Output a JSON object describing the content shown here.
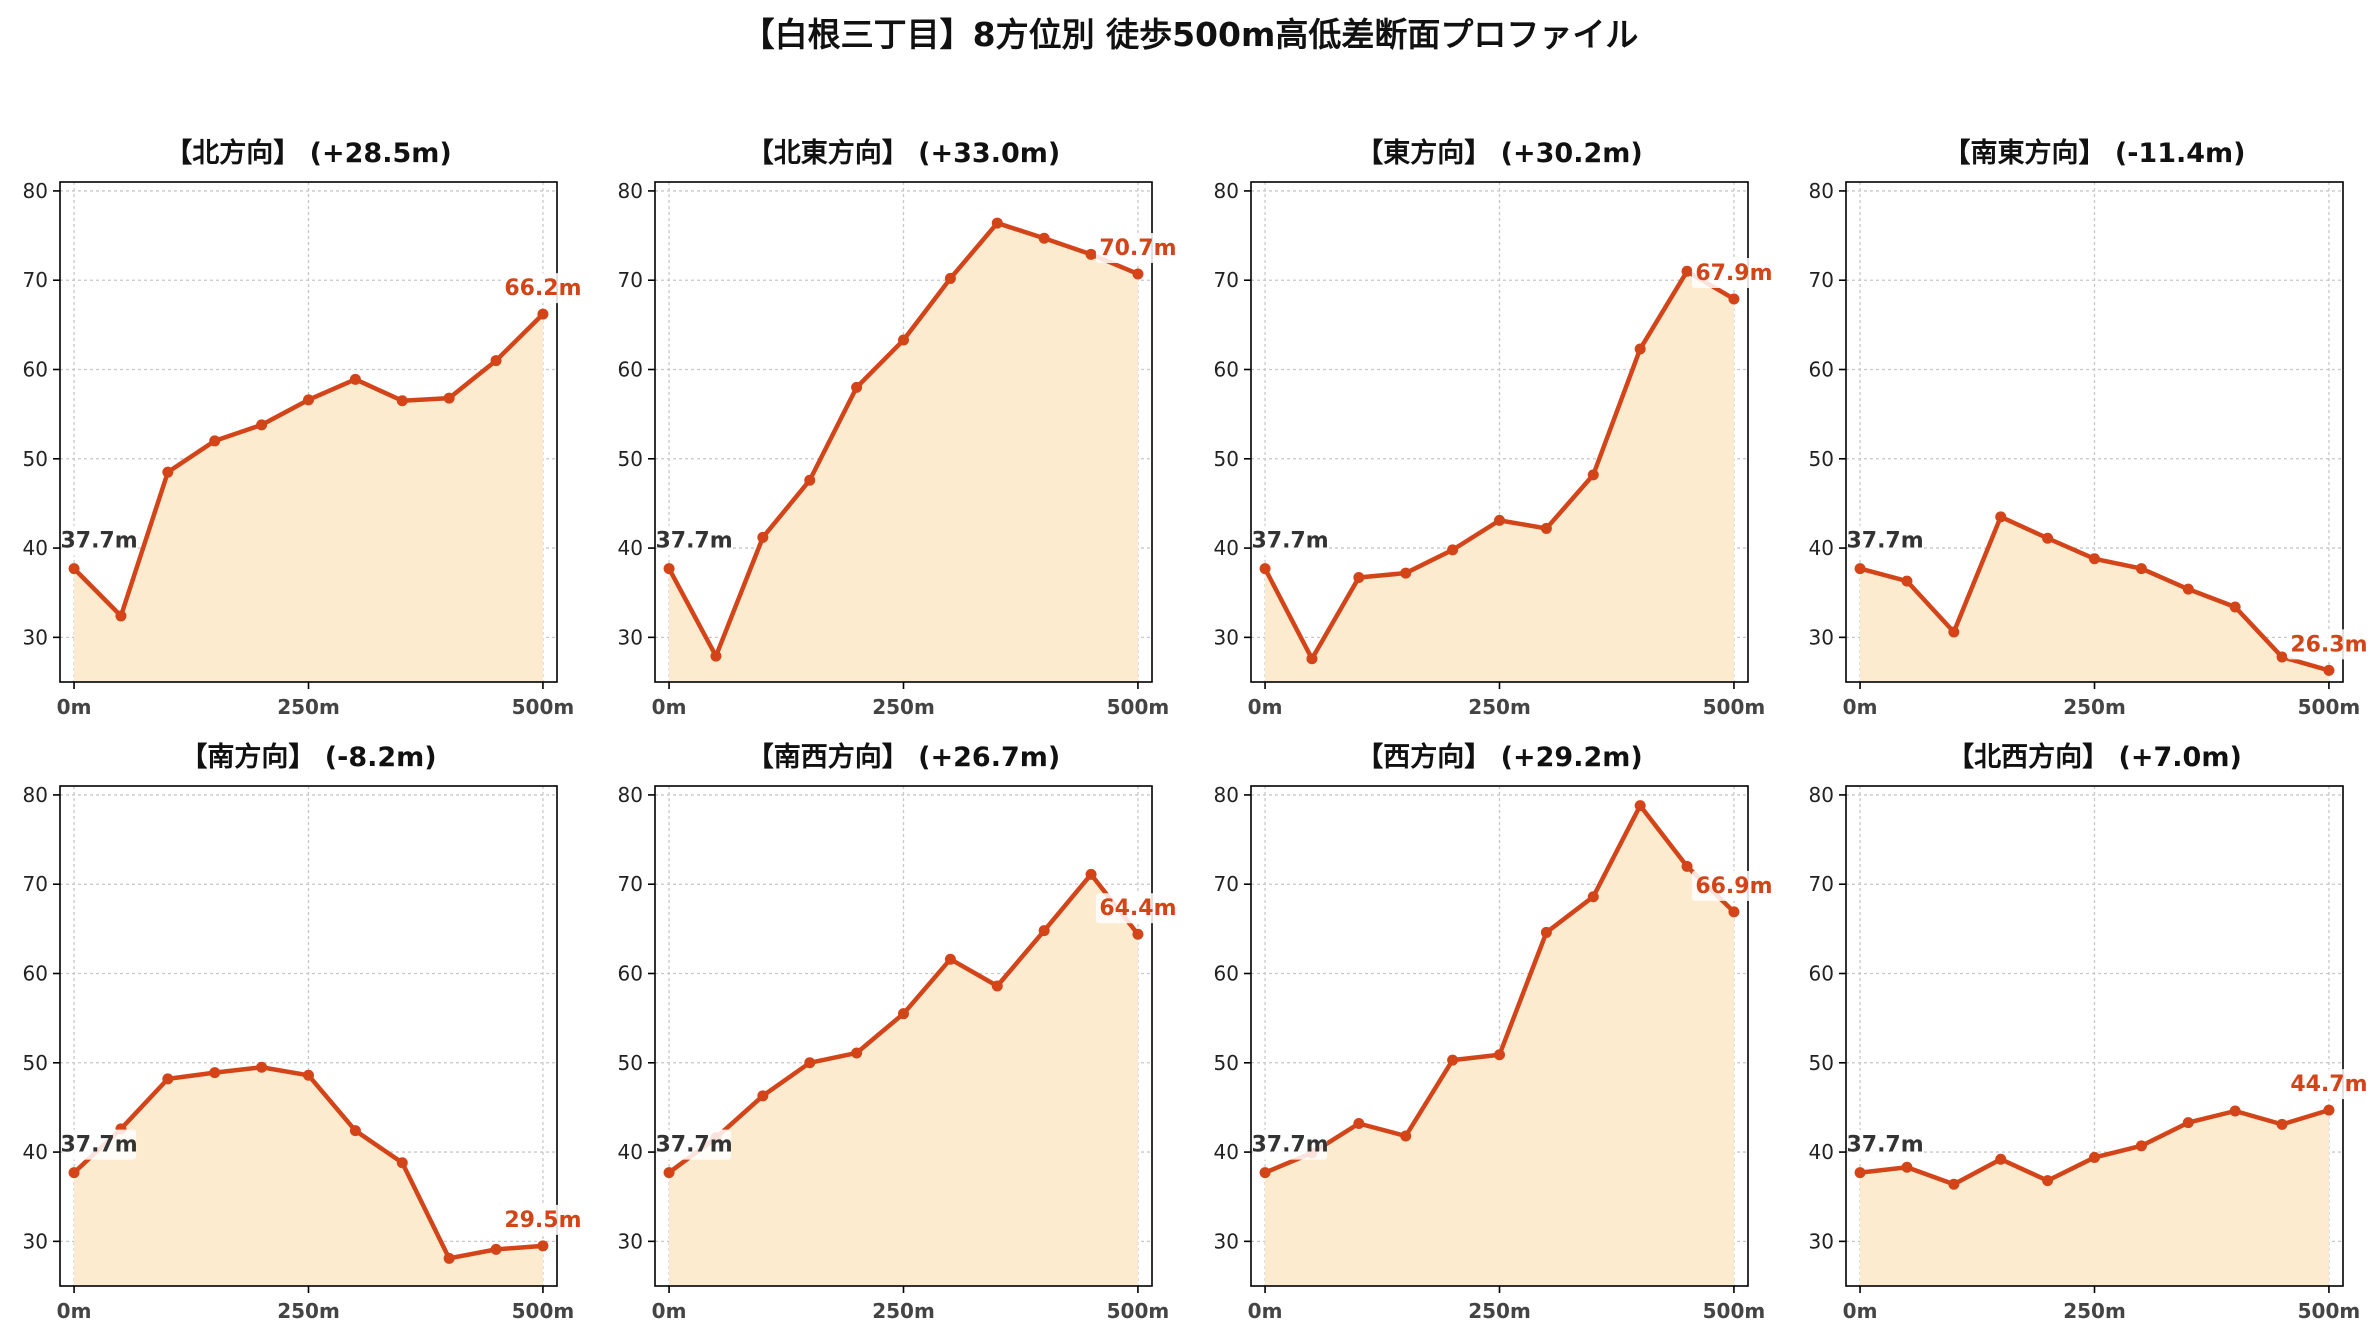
{
  "figure": {
    "title": "【白根三丁目】8方位別 徒歩500m高低差断面プロファイル"
  },
  "chart_data": [
    {
      "type": "area",
      "title": "【北方向】 (+28.5m)",
      "x": [
        0,
        50,
        100,
        150,
        200,
        250,
        300,
        350,
        400,
        450,
        500
      ],
      "values": [
        37.7,
        32.4,
        48.5,
        52.0,
        53.8,
        56.6,
        58.9,
        56.5,
        56.8,
        61.0,
        66.2
      ],
      "start_label": "37.7m",
      "end_label": "66.2m",
      "xticks": [
        "0m",
        "250m",
        "500m"
      ],
      "yticks": [
        30,
        40,
        50,
        60,
        70,
        80
      ],
      "ylim": [
        25,
        81
      ],
      "xlim": [
        -15,
        515
      ],
      "grid": true
    },
    {
      "type": "area",
      "title": "【北東方向】 (+33.0m)",
      "x": [
        0,
        50,
        100,
        150,
        200,
        250,
        300,
        350,
        400,
        450,
        500
      ],
      "values": [
        37.7,
        27.9,
        41.2,
        47.6,
        58.0,
        63.3,
        70.2,
        76.4,
        74.7,
        72.9,
        70.7
      ],
      "start_label": "37.7m",
      "end_label": "70.7m",
      "xticks": [
        "0m",
        "250m",
        "500m"
      ],
      "yticks": [
        30,
        40,
        50,
        60,
        70,
        80
      ],
      "ylim": [
        25,
        81
      ],
      "xlim": [
        -15,
        515
      ],
      "grid": true
    },
    {
      "type": "area",
      "title": "【東方向】 (+30.2m)",
      "x": [
        0,
        50,
        100,
        150,
        200,
        250,
        300,
        350,
        400,
        450,
        500
      ],
      "values": [
        37.7,
        27.6,
        36.7,
        37.2,
        39.8,
        43.1,
        42.2,
        48.2,
        62.3,
        71.0,
        67.9
      ],
      "start_label": "37.7m",
      "end_label": "67.9m",
      "xticks": [
        "0m",
        "250m",
        "500m"
      ],
      "yticks": [
        30,
        40,
        50,
        60,
        70,
        80
      ],
      "ylim": [
        25,
        81
      ],
      "xlim": [
        -15,
        515
      ],
      "grid": true
    },
    {
      "type": "area",
      "title": "【南東方向】 (-11.4m)",
      "x": [
        0,
        50,
        100,
        150,
        200,
        250,
        300,
        350,
        400,
        450,
        500
      ],
      "values": [
        37.7,
        36.3,
        30.6,
        43.5,
        41.1,
        38.8,
        37.7,
        35.4,
        33.4,
        27.8,
        26.3
      ],
      "start_label": "37.7m",
      "end_label": "26.3m",
      "xticks": [
        "0m",
        "250m",
        "500m"
      ],
      "yticks": [
        30,
        40,
        50,
        60,
        70,
        80
      ],
      "ylim": [
        25,
        81
      ],
      "xlim": [
        -15,
        515
      ],
      "grid": true
    },
    {
      "type": "area",
      "title": "【南方向】 (-8.2m)",
      "x": [
        0,
        50,
        100,
        150,
        200,
        250,
        300,
        350,
        400,
        450,
        500
      ],
      "values": [
        37.7,
        42.6,
        48.2,
        48.9,
        49.5,
        48.6,
        42.4,
        38.8,
        28.1,
        29.1,
        29.5
      ],
      "start_label": "37.7m",
      "end_label": "29.5m",
      "xticks": [
        "0m",
        "250m",
        "500m"
      ],
      "yticks": [
        30,
        40,
        50,
        60,
        70,
        80
      ],
      "ylim": [
        25,
        81
      ],
      "xlim": [
        -15,
        515
      ],
      "grid": true
    },
    {
      "type": "area",
      "title": "【南西方向】 (+26.7m)",
      "x": [
        0,
        50,
        100,
        150,
        200,
        250,
        300,
        350,
        400,
        450,
        500
      ],
      "values": [
        37.7,
        41.6,
        46.3,
        50.0,
        51.1,
        55.5,
        61.6,
        58.6,
        64.8,
        71.1,
        64.4
      ],
      "start_label": "37.7m",
      "end_label": "64.4m",
      "xticks": [
        "0m",
        "250m",
        "500m"
      ],
      "yticks": [
        30,
        40,
        50,
        60,
        70,
        80
      ],
      "ylim": [
        25,
        81
      ],
      "xlim": [
        -15,
        515
      ],
      "grid": true
    },
    {
      "type": "area",
      "title": "【西方向】 (+29.2m)",
      "x": [
        0,
        50,
        100,
        150,
        200,
        250,
        300,
        350,
        400,
        450,
        500
      ],
      "values": [
        37.7,
        39.9,
        43.2,
        41.8,
        50.3,
        50.9,
        64.6,
        68.6,
        78.8,
        72.0,
        66.9
      ],
      "start_label": "37.7m",
      "end_label": "66.9m",
      "xticks": [
        "0m",
        "250m",
        "500m"
      ],
      "yticks": [
        30,
        40,
        50,
        60,
        70,
        80
      ],
      "ylim": [
        25,
        81
      ],
      "xlim": [
        -15,
        515
      ],
      "grid": true
    },
    {
      "type": "area",
      "title": "【北西方向】 (+7.0m)",
      "x": [
        0,
        50,
        100,
        150,
        200,
        250,
        300,
        350,
        400,
        450,
        500
      ],
      "values": [
        37.7,
        38.3,
        36.4,
        39.2,
        36.8,
        39.4,
        40.7,
        43.3,
        44.6,
        43.1,
        44.7
      ],
      "start_label": "37.7m",
      "end_label": "44.7m",
      "xticks": [
        "0m",
        "250m",
        "500m"
      ],
      "yticks": [
        30,
        40,
        50,
        60,
        70,
        80
      ],
      "ylim": [
        25,
        81
      ],
      "xlim": [
        -15,
        515
      ],
      "grid": true
    }
  ],
  "colors": {
    "line": "#d44419",
    "fill": "#fdebd0",
    "end_label": "#d44419",
    "start_label": "#333333",
    "grid": "#c8c8c8",
    "axis": "#000000"
  }
}
